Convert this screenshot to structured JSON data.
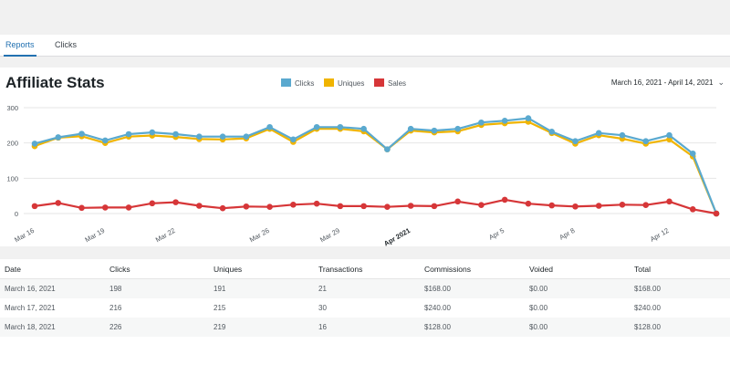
{
  "tabs": [
    {
      "label": "Reports",
      "active": true
    },
    {
      "label": "Clicks",
      "active": false
    }
  ],
  "page_title": "Affiliate Stats",
  "legend": [
    {
      "label": "Clicks",
      "color": "#5aa9cf"
    },
    {
      "label": "Uniques",
      "color": "#f0b400"
    },
    {
      "label": "Sales",
      "color": "#d63638"
    }
  ],
  "date_range": "March 16, 2021 - April 14, 2021",
  "chart_data": {
    "type": "line",
    "x": [
      "2021-03-16",
      "2021-03-17",
      "2021-03-18",
      "2021-03-19",
      "2021-03-20",
      "2021-03-21",
      "2021-03-22",
      "2021-03-23",
      "2021-03-24",
      "2021-03-25",
      "2021-03-26",
      "2021-03-27",
      "2021-03-28",
      "2021-03-29",
      "2021-03-30",
      "2021-03-31",
      "2021-04-01",
      "2021-04-02",
      "2021-04-03",
      "2021-04-04",
      "2021-04-05",
      "2021-04-06",
      "2021-04-07",
      "2021-04-08",
      "2021-04-09",
      "2021-04-10",
      "2021-04-11",
      "2021-04-12",
      "2021-04-13",
      "2021-04-14"
    ],
    "xtick_labels": [
      {
        "index": 0,
        "label": "Mar 16",
        "bold": false
      },
      {
        "index": 3,
        "label": "Mar 19",
        "bold": false
      },
      {
        "index": 6,
        "label": "Mar 22",
        "bold": false
      },
      {
        "index": 10,
        "label": "Mar 26",
        "bold": false
      },
      {
        "index": 13,
        "label": "Mar 29",
        "bold": false
      },
      {
        "index": 16,
        "label": "Apr 2021",
        "bold": true
      },
      {
        "index": 20,
        "label": "Apr 5",
        "bold": false
      },
      {
        "index": 23,
        "label": "Apr 8",
        "bold": false
      },
      {
        "index": 27,
        "label": "Apr 12",
        "bold": false
      }
    ],
    "yticks": [
      0,
      100,
      200,
      300
    ],
    "ylim": [
      0,
      300
    ],
    "grid": true,
    "legend_position": "top-center",
    "series": [
      {
        "name": "Clicks",
        "color": "#5aa9cf",
        "values": [
          198,
          216,
          226,
          207,
          225,
          230,
          225,
          218,
          218,
          218,
          245,
          210,
          245,
          245,
          240,
          182,
          240,
          235,
          240,
          258,
          263,
          270,
          232,
          205,
          228,
          222,
          205,
          222,
          170,
          0
        ]
      },
      {
        "name": "Uniques",
        "color": "#f0b400",
        "values": [
          191,
          215,
          219,
          200,
          218,
          221,
          217,
          211,
          210,
          213,
          240,
          203,
          240,
          240,
          233,
          182,
          235,
          230,
          233,
          251,
          256,
          260,
          228,
          198,
          222,
          212,
          198,
          210,
          162,
          0
        ]
      },
      {
        "name": "Sales",
        "color": "#d63638",
        "values": [
          21,
          30,
          16,
          17,
          17,
          29,
          32,
          22,
          15,
          20,
          19,
          25,
          28,
          21,
          21,
          19,
          22,
          21,
          34,
          24,
          39,
          28,
          23,
          20,
          22,
          25,
          24,
          34,
          12,
          0
        ]
      }
    ]
  },
  "table": {
    "columns": [
      "Date",
      "Clicks",
      "Uniques",
      "Transactions",
      "Commissions",
      "Voided",
      "Total"
    ],
    "rows": [
      [
        "March 16, 2021",
        "198",
        "191",
        "21",
        "$168.00",
        "$0.00",
        "$168.00"
      ],
      [
        "March 17, 2021",
        "216",
        "215",
        "30",
        "$240.00",
        "$0.00",
        "$240.00"
      ],
      [
        "March 18, 2021",
        "226",
        "219",
        "16",
        "$128.00",
        "$0.00",
        "$128.00"
      ]
    ]
  }
}
